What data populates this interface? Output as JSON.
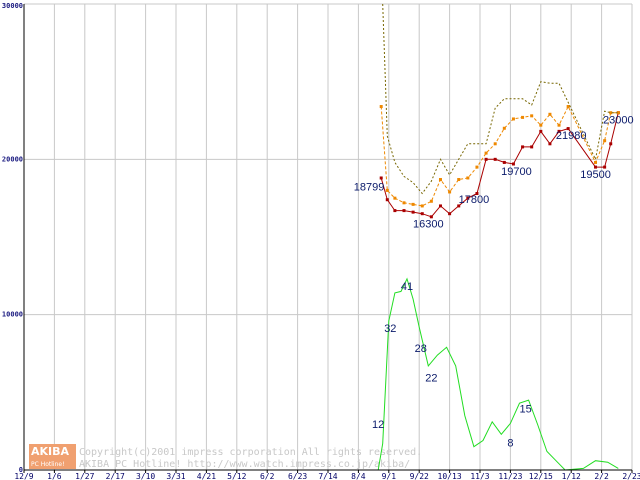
{
  "chart_data": {
    "type": "line",
    "categories": [
      "12/9",
      "1/6",
      "1/27",
      "2/17",
      "3/10",
      "3/31",
      "4/21",
      "5/12",
      "6/2",
      "6/23",
      "7/14",
      "8/4",
      "9/1",
      "9/22",
      "10/13",
      "11/3",
      "11/23",
      "12/15",
      "1/12",
      "2/2",
      "2/23"
    ],
    "y_ticks": [
      "30000",
      "20000",
      "10000",
      "0"
    ],
    "ylim": [
      0,
      30000
    ],
    "grid": true,
    "x_min": 0,
    "x_max": 20,
    "series": [
      {
        "color": "#aa0000",
        "style": "solid-markers",
        "points": [
          [
            11.75,
            18799
          ],
          [
            11.95,
            17400
          ],
          [
            12.2,
            16700
          ],
          [
            12.5,
            16700
          ],
          [
            12.8,
            16600
          ],
          [
            13.1,
            16500
          ],
          [
            13.4,
            16300
          ],
          [
            13.7,
            17000
          ],
          [
            14.0,
            16500
          ],
          [
            14.3,
            17000
          ],
          [
            14.6,
            17500
          ],
          [
            14.9,
            17800
          ],
          [
            15.2,
            20000
          ],
          [
            15.5,
            20000
          ],
          [
            15.8,
            19800
          ],
          [
            16.1,
            19700
          ],
          [
            16.4,
            20800
          ],
          [
            16.7,
            20800
          ],
          [
            17.0,
            21800
          ],
          [
            17.3,
            21000
          ],
          [
            17.6,
            21800
          ],
          [
            17.9,
            21980
          ],
          [
            18.8,
            19500
          ],
          [
            19.1,
            19500
          ],
          [
            19.3,
            21000
          ],
          [
            19.55,
            23000
          ]
        ]
      },
      {
        "color": "#ee8800",
        "style": "dashed-markers",
        "points": [
          [
            11.75,
            23400
          ],
          [
            11.95,
            18000
          ],
          [
            12.2,
            17500
          ],
          [
            12.5,
            17200
          ],
          [
            12.8,
            17100
          ],
          [
            13.1,
            17000
          ],
          [
            13.4,
            17300
          ],
          [
            13.7,
            18700
          ],
          [
            14.0,
            17900
          ],
          [
            14.3,
            18700
          ],
          [
            14.6,
            18800
          ],
          [
            14.9,
            19500
          ],
          [
            15.2,
            20400
          ],
          [
            15.5,
            21000
          ],
          [
            15.8,
            22000
          ],
          [
            16.1,
            22600
          ],
          [
            16.4,
            22700
          ],
          [
            16.7,
            22800
          ],
          [
            17.0,
            22200
          ],
          [
            17.3,
            22900
          ],
          [
            17.6,
            22200
          ],
          [
            17.9,
            23400
          ],
          [
            18.8,
            19800
          ],
          [
            19.1,
            21200
          ],
          [
            19.3,
            23000
          ],
          [
            19.55,
            23000
          ]
        ]
      },
      {
        "color": "#776600",
        "style": "dotted",
        "points": [
          [
            11.8,
            30000
          ],
          [
            11.95,
            21500
          ],
          [
            12.2,
            19800
          ],
          [
            12.5,
            18900
          ],
          [
            12.8,
            18500
          ],
          [
            13.1,
            17800
          ],
          [
            13.4,
            18600
          ],
          [
            13.7,
            20000
          ],
          [
            14.0,
            19000
          ],
          [
            14.3,
            20000
          ],
          [
            14.6,
            21000
          ],
          [
            14.9,
            21000
          ],
          [
            15.2,
            21000
          ],
          [
            15.5,
            23300
          ],
          [
            15.8,
            23900
          ],
          [
            16.1,
            23900
          ],
          [
            16.4,
            23900
          ],
          [
            16.7,
            23500
          ],
          [
            17.0,
            25000
          ],
          [
            17.3,
            24900
          ],
          [
            17.6,
            24900
          ],
          [
            18.8,
            20000
          ],
          [
            19.1,
            23100
          ],
          [
            19.3,
            23000
          ],
          [
            19.55,
            23000
          ]
        ]
      },
      {
        "color": "#22dd22",
        "style": "solid",
        "points": [
          [
            11.65,
            0
          ],
          [
            11.8,
            1700
          ],
          [
            12.0,
            9600
          ],
          [
            12.2,
            11400
          ],
          [
            12.4,
            11500
          ],
          [
            12.6,
            12300
          ],
          [
            12.8,
            11000
          ],
          [
            13.0,
            9200
          ],
          [
            13.3,
            6700
          ],
          [
            13.6,
            7400
          ],
          [
            13.9,
            7900
          ],
          [
            14.2,
            6700
          ],
          [
            14.5,
            3500
          ],
          [
            14.8,
            1500
          ],
          [
            15.1,
            1900
          ],
          [
            15.4,
            3100
          ],
          [
            15.7,
            2300
          ],
          [
            16.0,
            3000
          ],
          [
            16.3,
            4300
          ],
          [
            16.6,
            4500
          ],
          [
            16.9,
            2900
          ],
          [
            17.2,
            1200
          ],
          [
            17.5,
            600
          ],
          [
            17.8,
            0
          ],
          [
            18.4,
            100
          ],
          [
            18.8,
            600
          ],
          [
            19.2,
            500
          ],
          [
            19.55,
            100
          ]
        ]
      }
    ],
    "data_labels": [
      {
        "text": "18799",
        "x": 11.35,
        "y": 18000
      },
      {
        "text": "16300",
        "x": 13.3,
        "y": 15600
      },
      {
        "text": "17800",
        "x": 14.8,
        "y": 17200
      },
      {
        "text": "19700",
        "x": 16.2,
        "y": 19000
      },
      {
        "text": "21980",
        "x": 18.0,
        "y": 21300
      },
      {
        "text": "19500",
        "x": 18.8,
        "y": 18800
      },
      {
        "text": "23000",
        "x": 19.55,
        "y": 22300
      },
      {
        "text": "41",
        "x": 12.6,
        "y": 11600
      },
      {
        "text": "32",
        "x": 12.05,
        "y": 8900
      },
      {
        "text": "28",
        "x": 13.05,
        "y": 7600
      },
      {
        "text": "22",
        "x": 13.4,
        "y": 5700
      },
      {
        "text": "12",
        "x": 11.65,
        "y": 2700
      },
      {
        "text": "15",
        "x": 16.5,
        "y": 3700
      },
      {
        "text": "8",
        "x": 16.0,
        "y": 1500
      }
    ]
  },
  "watermark": {
    "badge_top": "AKIBA",
    "badge_sub": "PC Hotline!",
    "line1": "Copyright(c)2001 impress corporation All rights reserved.",
    "line2": "AKIBA PC Hotline! http://www.watch.impress.co.jp/akiba/"
  },
  "colors": {
    "grid": "#c8c8c8",
    "axis": "#000000",
    "badge": "#f0a070"
  }
}
